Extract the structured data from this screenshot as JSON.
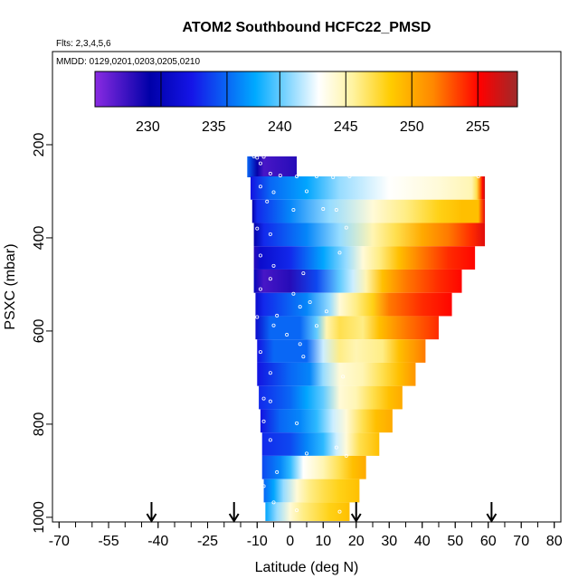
{
  "chart_data": {
    "type": "heatmap",
    "title": "ATOM2 Southbound HCFC22_PMSD",
    "subtitle_flights": "Flts: 2,3,4,5,6",
    "subtitle_dates": "MMDD: 0129,0201,0203,0205,0210",
    "xlabel": "Latitude (deg N)",
    "ylabel": "PSXC (mbar)",
    "xlim": [
      -72,
      82
    ],
    "ylim": [
      1010,
      0
    ],
    "x_ticks": [
      -70,
      -55,
      -40,
      -25,
      -10,
      0,
      10,
      20,
      30,
      40,
      50,
      60,
      70,
      80
    ],
    "x_tick_labels": [
      "-70",
      "-55",
      "-40",
      "-25",
      "-10",
      "0",
      "10",
      "20",
      "30",
      "40",
      "50",
      "60",
      "70",
      "80"
    ],
    "x_minor_step": 5,
    "y_ticks": [
      200,
      400,
      600,
      800,
      1000
    ],
    "y_tick_labels": [
      "200",
      "400",
      "600",
      "800",
      "1000"
    ],
    "colorbar": {
      "min": 226,
      "max": 258,
      "ticks": [
        230,
        235,
        240,
        245,
        250,
        255
      ],
      "tick_labels": [
        "230",
        "235",
        "240",
        "245",
        "250",
        "255"
      ],
      "separators": [
        226,
        231,
        236,
        240,
        245,
        250,
        255,
        258
      ]
    },
    "arrows_latitude": [
      -42,
      -17,
      20,
      61
    ],
    "bands": [
      {
        "p_top": 225,
        "p_bot": 270,
        "lat_min": -13,
        "lat_max": 2,
        "stops": [
          [
            -13,
            236
          ],
          [
            -10,
            230
          ],
          [
            -8,
            228
          ],
          [
            2,
            229
          ]
        ]
      },
      {
        "p_top": 268,
        "p_bot": 318,
        "lat_min": -12,
        "lat_max": 59,
        "stops": [
          [
            -12,
            233
          ],
          [
            -6,
            236
          ],
          [
            5,
            238
          ],
          [
            15,
            241
          ],
          [
            30,
            243
          ],
          [
            45,
            244
          ],
          [
            55,
            245
          ],
          [
            56.5,
            247
          ],
          [
            57.5,
            252
          ],
          [
            58.3,
            255
          ],
          [
            59,
            257
          ]
        ]
      },
      {
        "p_top": 318,
        "p_bot": 368,
        "lat_min": -11.5,
        "lat_max": 59,
        "stops": [
          [
            -11.5,
            230
          ],
          [
            -10,
            234
          ],
          [
            0,
            237
          ],
          [
            12,
            241
          ],
          [
            25,
            244
          ],
          [
            35,
            246
          ],
          [
            45,
            248
          ],
          [
            52,
            249
          ],
          [
            57,
            249
          ],
          [
            58,
            253
          ],
          [
            59,
            256
          ]
        ]
      },
      {
        "p_top": 368,
        "p_bot": 418,
        "lat_min": -11,
        "lat_max": 59,
        "stops": [
          [
            -11,
            230
          ],
          [
            -8,
            234
          ],
          [
            5,
            237
          ],
          [
            15,
            241
          ],
          [
            25,
            245
          ],
          [
            32,
            247
          ],
          [
            40,
            250
          ],
          [
            48,
            252
          ],
          [
            55,
            254
          ],
          [
            59,
            256
          ]
        ]
      },
      {
        "p_top": 418,
        "p_bot": 468,
        "lat_min": -11,
        "lat_max": 56,
        "stops": [
          [
            -11,
            229
          ],
          [
            -9,
            232
          ],
          [
            0,
            234
          ],
          [
            10,
            238
          ],
          [
            17,
            241
          ],
          [
            22,
            244
          ],
          [
            27,
            246
          ],
          [
            33,
            249
          ],
          [
            40,
            252
          ],
          [
            48,
            254
          ],
          [
            56,
            255
          ]
        ]
      },
      {
        "p_top": 468,
        "p_bot": 518,
        "lat_min": -11,
        "lat_max": 52,
        "stops": [
          [
            -11,
            231
          ],
          [
            -8,
            228
          ],
          [
            0,
            229
          ],
          [
            8,
            235
          ],
          [
            15,
            240
          ],
          [
            19,
            242
          ],
          [
            23,
            245
          ],
          [
            28,
            249
          ],
          [
            35,
            252
          ],
          [
            45,
            254
          ],
          [
            52,
            255
          ]
        ]
      },
      {
        "p_top": 518,
        "p_bot": 568,
        "lat_min": -10.5,
        "lat_max": 49,
        "stops": [
          [
            -10.5,
            232
          ],
          [
            -8,
            234
          ],
          [
            5,
            237
          ],
          [
            12,
            241
          ],
          [
            15,
            244
          ],
          [
            20,
            246
          ],
          [
            25,
            248
          ],
          [
            30,
            252
          ],
          [
            40,
            254
          ],
          [
            49,
            255
          ]
        ]
      },
      {
        "p_top": 568,
        "p_bot": 618,
        "lat_min": -10.5,
        "lat_max": 45,
        "stops": [
          [
            -10.5,
            232
          ],
          [
            -6,
            236
          ],
          [
            3,
            236
          ],
          [
            8,
            240
          ],
          [
            11,
            245
          ],
          [
            15,
            247
          ],
          [
            22,
            246
          ],
          [
            27,
            249
          ],
          [
            35,
            252
          ],
          [
            45,
            254
          ]
        ]
      },
      {
        "p_top": 618,
        "p_bot": 668,
        "lat_min": -10,
        "lat_max": 41,
        "stops": [
          [
            -10,
            233
          ],
          [
            -5,
            236
          ],
          [
            5,
            236
          ],
          [
            10,
            242
          ],
          [
            15,
            246
          ],
          [
            20,
            245
          ],
          [
            28,
            246
          ],
          [
            33,
            249
          ],
          [
            38,
            251
          ],
          [
            41,
            252
          ]
        ]
      },
      {
        "p_top": 668,
        "p_bot": 718,
        "lat_min": -10,
        "lat_max": 38,
        "stops": [
          [
            -10,
            233
          ],
          [
            0,
            236
          ],
          [
            6,
            237
          ],
          [
            10,
            241
          ],
          [
            15,
            244
          ],
          [
            22,
            245
          ],
          [
            28,
            247
          ],
          [
            33,
            249
          ],
          [
            38,
            251
          ]
        ]
      },
      {
        "p_top": 718,
        "p_bot": 768,
        "lat_min": -9.5,
        "lat_max": 34,
        "stops": [
          [
            -9.5,
            234
          ],
          [
            0,
            236
          ],
          [
            5,
            238
          ],
          [
            10,
            240
          ],
          [
            15,
            244
          ],
          [
            20,
            245
          ],
          [
            25,
            247
          ],
          [
            30,
            249
          ],
          [
            34,
            250
          ]
        ]
      },
      {
        "p_top": 768,
        "p_bot": 818,
        "lat_min": -9,
        "lat_max": 31,
        "stops": [
          [
            -9,
            233
          ],
          [
            -3,
            236
          ],
          [
            3,
            237
          ],
          [
            8,
            239
          ],
          [
            13,
            242
          ],
          [
            17,
            244
          ],
          [
            22,
            247
          ],
          [
            26,
            249
          ],
          [
            31,
            250
          ]
        ]
      },
      {
        "p_top": 818,
        "p_bot": 868,
        "lat_min": -8.5,
        "lat_max": 27,
        "stops": [
          [
            -8.5,
            234
          ],
          [
            0,
            235
          ],
          [
            5,
            237
          ],
          [
            10,
            239
          ],
          [
            14,
            242
          ],
          [
            17,
            244
          ],
          [
            21,
            247
          ],
          [
            27,
            249
          ]
        ]
      },
      {
        "p_top": 868,
        "p_bot": 918,
        "lat_min": -8.5,
        "lat_max": 23,
        "stops": [
          [
            -8.5,
            235
          ],
          [
            -3,
            237
          ],
          [
            0,
            239
          ],
          [
            4,
            243
          ],
          [
            10,
            245
          ],
          [
            15,
            247
          ],
          [
            19,
            249
          ],
          [
            23,
            250
          ]
        ]
      },
      {
        "p_top": 918,
        "p_bot": 968,
        "lat_min": -8,
        "lat_max": 21,
        "stops": [
          [
            -8,
            236
          ],
          [
            -5,
            238
          ],
          [
            -2,
            241
          ],
          [
            2,
            244
          ],
          [
            6,
            246
          ],
          [
            10,
            247
          ],
          [
            15,
            248
          ],
          [
            21,
            249
          ]
        ]
      },
      {
        "p_top": 968,
        "p_bot": 1008,
        "lat_min": -7.5,
        "lat_max": 18,
        "stops": [
          [
            -7.5,
            238
          ],
          [
            -4,
            241
          ],
          [
            0,
            244
          ],
          [
            4,
            246
          ],
          [
            8,
            247
          ],
          [
            12,
            248
          ],
          [
            18,
            249
          ]
        ]
      }
    ],
    "observations": [
      [
        -11,
        225
      ],
      [
        -10,
        228
      ],
      [
        -8,
        226
      ],
      [
        -9,
        240
      ],
      [
        -6,
        262
      ],
      [
        -3,
        266
      ],
      [
        2,
        268
      ],
      [
        8,
        268
      ],
      [
        13,
        270
      ],
      [
        18,
        268
      ],
      [
        57,
        268
      ],
      [
        -9,
        290
      ],
      [
        -5,
        302
      ],
      [
        5,
        300
      ],
      [
        -7,
        322
      ],
      [
        1,
        340
      ],
      [
        10,
        338
      ],
      [
        14,
        340
      ],
      [
        -10,
        380
      ],
      [
        -6,
        392
      ],
      [
        17,
        378
      ],
      [
        15,
        432
      ],
      [
        -9,
        438
      ],
      [
        -5,
        460
      ],
      [
        4,
        476
      ],
      [
        -6,
        488
      ],
      [
        -9,
        510
      ],
      [
        1,
        520
      ],
      [
        6,
        538
      ],
      [
        3,
        548
      ],
      [
        11,
        558
      ],
      [
        -4,
        567
      ],
      [
        -10,
        570
      ],
      [
        -5,
        588
      ],
      [
        8,
        589
      ],
      [
        -1,
        608
      ],
      [
        3,
        628
      ],
      [
        -9,
        645
      ],
      [
        4,
        655
      ],
      [
        -6,
        690
      ],
      [
        16,
        698
      ],
      [
        -8,
        745
      ],
      [
        -6,
        751
      ],
      [
        -8,
        794
      ],
      [
        2,
        798
      ],
      [
        -6,
        834
      ],
      [
        14,
        850
      ],
      [
        5,
        863
      ],
      [
        17,
        868
      ],
      [
        -4,
        903
      ],
      [
        -8,
        933
      ],
      [
        -5,
        968
      ],
      [
        2,
        985
      ],
      [
        15,
        988
      ]
    ]
  }
}
